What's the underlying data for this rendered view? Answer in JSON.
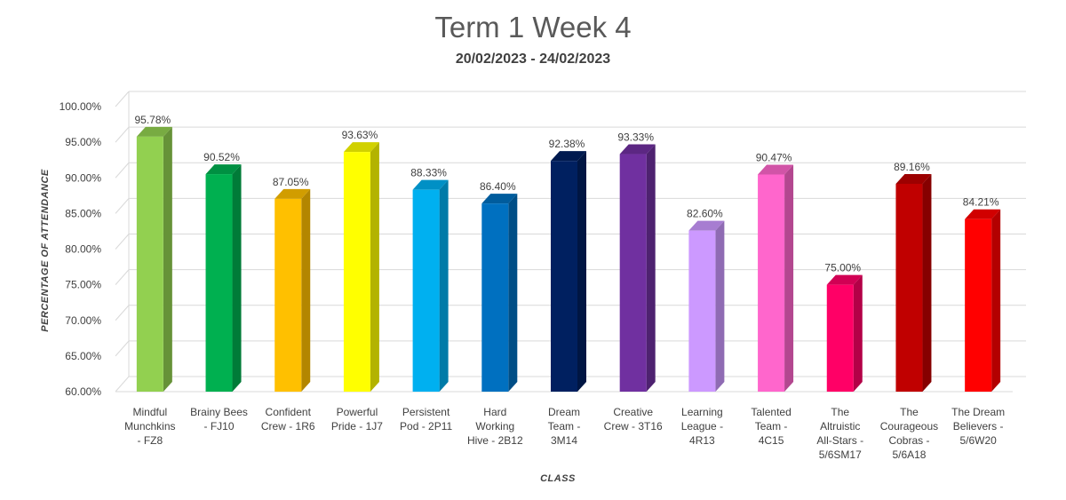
{
  "chart_data": {
    "type": "bar",
    "title": "Term 1 Week 4",
    "subtitle": "20/02/2023 - 24/02/2023",
    "xlabel": "CLASS",
    "ylabel": "PERCENTAGE OF ATTENDANCE",
    "ylim": [
      60,
      100
    ],
    "yticks": [
      "60.00%",
      "65.00%",
      "70.00%",
      "75.00%",
      "80.00%",
      "85.00%",
      "90.00%",
      "95.00%",
      "100.00%"
    ],
    "grid": true,
    "categories": [
      [
        "Mindful",
        "Munchkins",
        "- FZ8"
      ],
      [
        "Brainy Bees",
        "- FJ10"
      ],
      [
        "Confident",
        "Crew - 1R6"
      ],
      [
        "Powerful",
        "Pride - 1J7"
      ],
      [
        "Persistent",
        "Pod - 2P11"
      ],
      [
        "Hard",
        "Working",
        "Hive - 2B12"
      ],
      [
        "Dream",
        "Team -",
        "3M14"
      ],
      [
        "Creative",
        "Crew - 3T16"
      ],
      [
        "Learning",
        "League -",
        "4R13"
      ],
      [
        "Talented",
        "Team -",
        "4C15"
      ],
      [
        "The",
        "Altruistic",
        "All-Stars -",
        "5/6SM17"
      ],
      [
        "The",
        "Courageous",
        "Cobras -",
        "5/6A18"
      ],
      [
        "The Dream",
        "Believers -",
        "5/6W20"
      ]
    ],
    "values": [
      95.78,
      90.52,
      87.05,
      93.63,
      88.33,
      86.4,
      92.38,
      93.33,
      82.6,
      90.47,
      75.0,
      89.16,
      84.21
    ],
    "data_labels": [
      "95.78%",
      "90.52%",
      "87.05%",
      "93.63%",
      "88.33%",
      "86.40%",
      "92.38%",
      "93.33%",
      "82.60%",
      "90.47%",
      "75.00%",
      "89.16%",
      "84.21%"
    ],
    "colors": [
      "#92d050",
      "#00b050",
      "#ffc000",
      "#ffff00",
      "#00b0f0",
      "#0070c0",
      "#002060",
      "#7030a0",
      "#cc99ff",
      "#ff66cc",
      "#ff0066",
      "#c00000",
      "#ff0000"
    ]
  }
}
